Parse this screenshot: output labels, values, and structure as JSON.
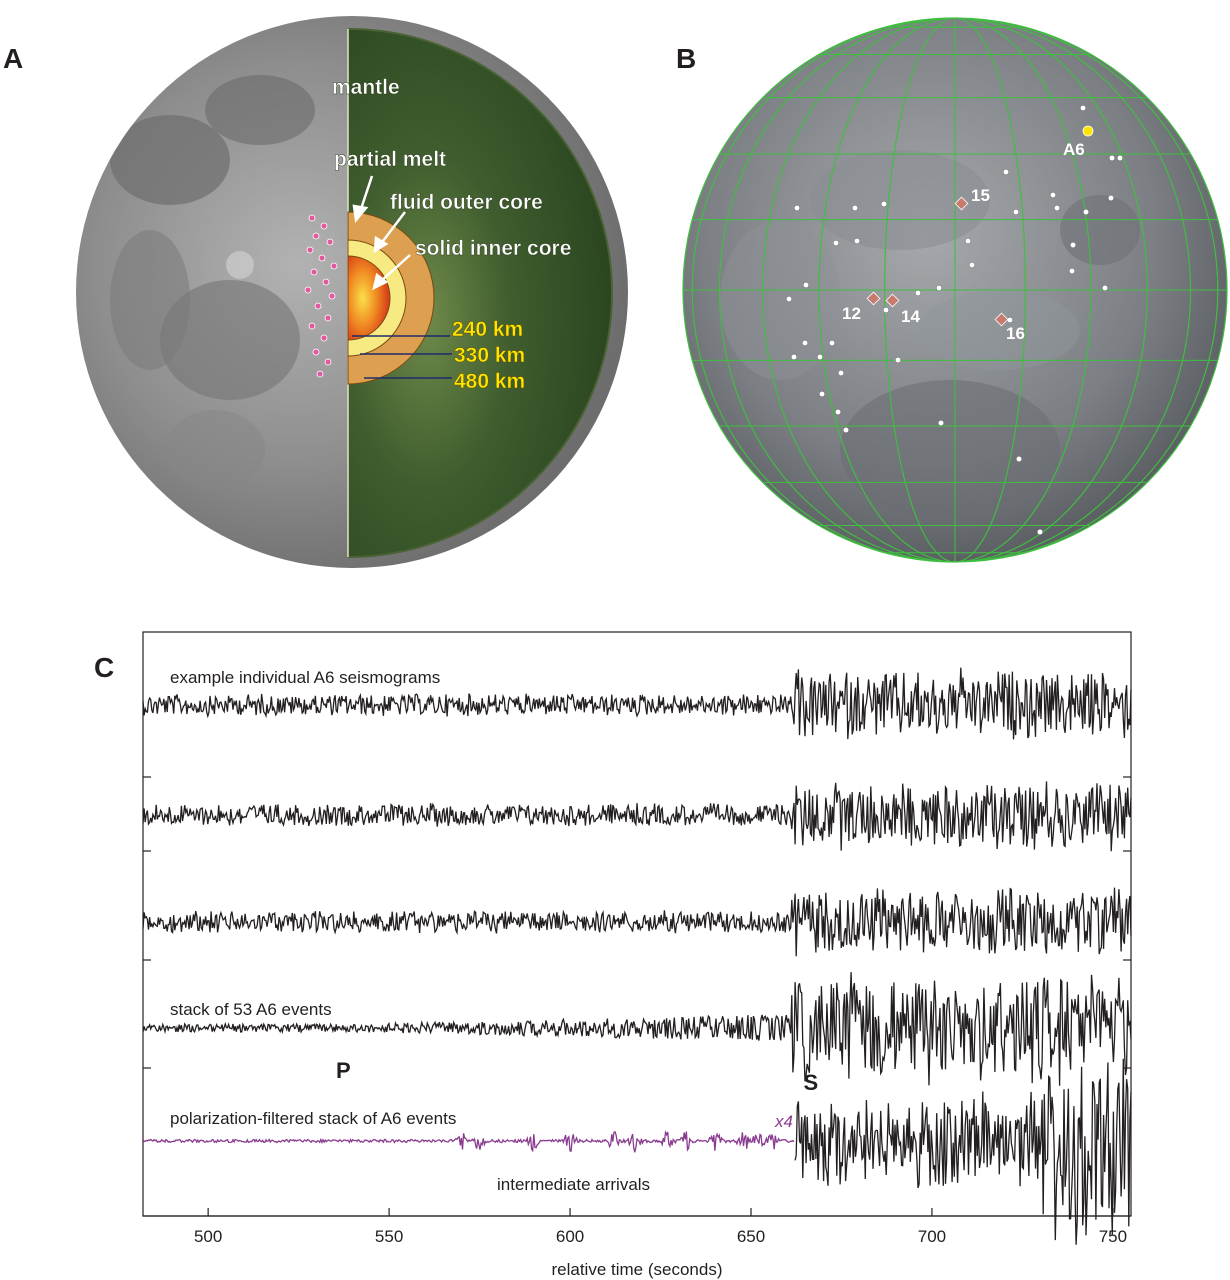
{
  "panels": {
    "a": "A",
    "b": "B",
    "c": "C"
  },
  "panel_a": {
    "labels": {
      "mantle": "mantle",
      "partial_melt": "partial melt",
      "outer_core": "fluid outer core",
      "inner_core": "solid inner core",
      "r_inner": "240 km",
      "r_outer": "330 km",
      "r_melt": "480 km"
    },
    "colors": {
      "mantle": "#3b5a2a",
      "melt": "#d69a45",
      "outer_core": "#f6e36e",
      "inner_core": "#e8501c",
      "radius_text": "#ffe400",
      "moon": "#9a9a9a"
    }
  },
  "panel_b": {
    "site_labels": {
      "s12": "12",
      "s14": "14",
      "s15": "15",
      "s16": "16"
    },
    "cluster_label": "A6",
    "colors": {
      "grid": "#3fbf3f",
      "site": "#c77b6e",
      "cluster": "#ffe600",
      "event": "#ffffff"
    }
  },
  "chart_data": {
    "type": "line",
    "xlabel": "relative time (seconds)",
    "xlim": [
      482,
      755
    ],
    "xticks": [
      500,
      550,
      600,
      650,
      700,
      750
    ],
    "traces": [
      {
        "label": "example individual A6 seismograms",
        "kind": "individual"
      },
      {
        "label": "",
        "kind": "individual"
      },
      {
        "label": "",
        "kind": "individual"
      },
      {
        "label": "stack of 53 A6 events",
        "kind": "stack"
      },
      {
        "label": "polarization-filtered stack of A6 events",
        "kind": "filtered",
        "amplification": "x4",
        "amplified_until_seconds": 662
      }
    ],
    "phases": [
      {
        "name": "P",
        "time": 539
      },
      {
        "name": "S",
        "time": 661
      }
    ],
    "annotation": "intermediate arrivals",
    "colors": {
      "trace": "#231f20",
      "amplified": "#8a3b8f"
    }
  }
}
